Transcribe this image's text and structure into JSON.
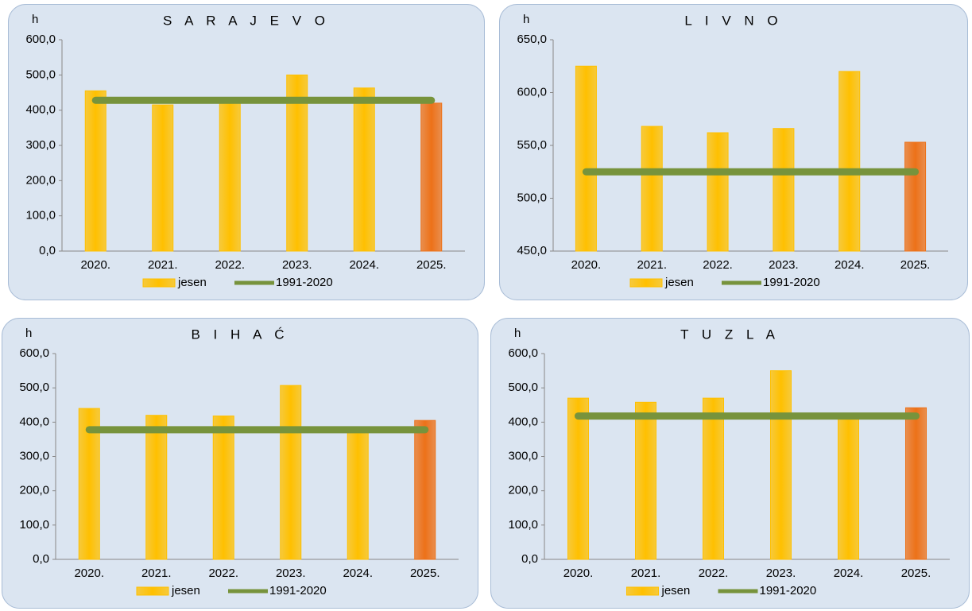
{
  "chart_data": [
    {
      "type": "bar",
      "title": "S A R A J E V O",
      "y_label": "h",
      "categories": [
        "2020.",
        "2021.",
        "2022.",
        "2023.",
        "2024.",
        "2025."
      ],
      "series": [
        {
          "name": "jesen",
          "color": "#ffc000",
          "point_colors": [
            "#ffc000",
            "#ffc000",
            "#ffc000",
            "#ffc000",
            "#ffc000",
            "#ed7118"
          ],
          "values": [
            455,
            415,
            425,
            500,
            463,
            420
          ]
        },
        {
          "name": "1991-2020",
          "color": "#77933c",
          "line": true,
          "values": [
            428,
            428,
            428,
            428,
            428,
            428
          ]
        }
      ],
      "ylim": [
        0,
        600
      ],
      "yticks": [
        {
          "value": 0,
          "label": "0,0"
        },
        {
          "value": 100,
          "label": "100,0"
        },
        {
          "value": 200,
          "label": "200,0"
        },
        {
          "value": 300,
          "label": "300,0"
        },
        {
          "value": 400,
          "label": "400,0"
        },
        {
          "value": 500,
          "label": "500,0"
        },
        {
          "value": 600,
          "label": "600,0"
        }
      ]
    },
    {
      "type": "bar",
      "title": "L I V N O",
      "y_label": "h",
      "categories": [
        "2020.",
        "2021.",
        "2022.",
        "2023.",
        "2024.",
        "2025."
      ],
      "series": [
        {
          "name": "jesen",
          "color": "#ffc000",
          "point_colors": [
            "#ffc000",
            "#ffc000",
            "#ffc000",
            "#ffc000",
            "#ffc000",
            "#ed7118"
          ],
          "values": [
            625,
            568,
            562,
            566,
            620,
            553
          ]
        },
        {
          "name": "1991-2020",
          "color": "#77933c",
          "line": true,
          "values": [
            525,
            525,
            525,
            525,
            525,
            525
          ]
        }
      ],
      "ylim": [
        450,
        650
      ],
      "yticks": [
        {
          "value": 450,
          "label": "450,0"
        },
        {
          "value": 500,
          "label": "500,0"
        },
        {
          "value": 550,
          "label": "550,0"
        },
        {
          "value": 600,
          "label": "600,0"
        },
        {
          "value": 650,
          "label": "650,0"
        }
      ]
    },
    {
      "type": "bar",
      "title": "B I H A Ć",
      "y_label": "h",
      "categories": [
        "2020.",
        "2021.",
        "2022.",
        "2023.",
        "2024.",
        "2025."
      ],
      "series": [
        {
          "name": "jesen",
          "color": "#ffc000",
          "point_colors": [
            "#ffc000",
            "#ffc000",
            "#ffc000",
            "#ffc000",
            "#ffc000",
            "#ed7118"
          ],
          "values": [
            440,
            420,
            418,
            507,
            370,
            405
          ]
        },
        {
          "name": "1991-2020",
          "color": "#77933c",
          "line": true,
          "values": [
            378,
            378,
            378,
            378,
            378,
            378
          ]
        }
      ],
      "ylim": [
        0,
        600
      ],
      "yticks": [
        {
          "value": 0,
          "label": "0,0"
        },
        {
          "value": 100,
          "label": "100,0"
        },
        {
          "value": 200,
          "label": "200,0"
        },
        {
          "value": 300,
          "label": "300,0"
        },
        {
          "value": 400,
          "label": "400,0"
        },
        {
          "value": 500,
          "label": "500,0"
        },
        {
          "value": 600,
          "label": "600,0"
        }
      ]
    },
    {
      "type": "bar",
      "title": "T U Z L A",
      "y_label": "h",
      "categories": [
        "2020.",
        "2021.",
        "2022.",
        "2023.",
        "2024.",
        "2025."
      ],
      "series": [
        {
          "name": "jesen",
          "color": "#ffc000",
          "point_colors": [
            "#ffc000",
            "#ffc000",
            "#ffc000",
            "#ffc000",
            "#ffc000",
            "#ed7118"
          ],
          "values": [
            470,
            458,
            470,
            550,
            410,
            442
          ]
        },
        {
          "name": "1991-2020",
          "color": "#77933c",
          "line": true,
          "values": [
            418,
            418,
            418,
            418,
            418,
            418
          ]
        }
      ],
      "ylim": [
        0,
        600
      ],
      "yticks": [
        {
          "value": 0,
          "label": "0,0"
        },
        {
          "value": 100,
          "label": "100,0"
        },
        {
          "value": 200,
          "label": "200,0"
        },
        {
          "value": 300,
          "label": "300,0"
        },
        {
          "value": 400,
          "label": "400,0"
        },
        {
          "value": 500,
          "label": "500,0"
        },
        {
          "value": 600,
          "label": "600,0"
        }
      ]
    }
  ]
}
